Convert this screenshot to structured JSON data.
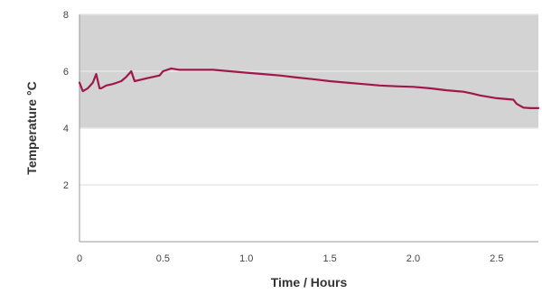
{
  "chart_data": {
    "type": "line",
    "title": "",
    "xlabel": "Time / Hours",
    "ylabel": "Temperature °C",
    "xlim": [
      0,
      2.75
    ],
    "ylim": [
      0,
      8
    ],
    "x_ticks": [
      0,
      0.5,
      1.0,
      1.5,
      2.0,
      2.5
    ],
    "x_tick_labels": [
      "0",
      "0.5",
      "1.0",
      "1.5",
      "2.0",
      "2.5"
    ],
    "y_ticks": [
      2,
      4,
      6,
      8
    ],
    "y_tick_labels": [
      "2",
      "4",
      "6",
      "8"
    ],
    "grid": "horizontal",
    "shaded_band": {
      "y_from": 4,
      "y_to": 8,
      "color": "#d3d3d3"
    },
    "series": [
      {
        "color": "#a0174a",
        "x": [
          0,
          0.02,
          0.05,
          0.08,
          0.1,
          0.12,
          0.13,
          0.16,
          0.2,
          0.25,
          0.28,
          0.31,
          0.33,
          0.4,
          0.48,
          0.5,
          0.55,
          0.6,
          0.7,
          0.8,
          0.9,
          1.0,
          1.1,
          1.2,
          1.3,
          1.4,
          1.5,
          1.6,
          1.7,
          1.8,
          1.9,
          2.0,
          2.1,
          2.2,
          2.3,
          2.35,
          2.4,
          2.5,
          2.6,
          2.62,
          2.66,
          2.7,
          2.75
        ],
        "values": [
          5.6,
          5.3,
          5.4,
          5.6,
          5.9,
          5.4,
          5.4,
          5.5,
          5.55,
          5.65,
          5.8,
          6.0,
          5.65,
          5.75,
          5.85,
          6.0,
          6.1,
          6.05,
          6.05,
          6.05,
          6.0,
          5.95,
          5.9,
          5.85,
          5.78,
          5.72,
          5.65,
          5.6,
          5.55,
          5.5,
          5.47,
          5.45,
          5.4,
          5.33,
          5.28,
          5.22,
          5.15,
          5.05,
          5.0,
          4.85,
          4.72,
          4.7,
          4.7
        ]
      }
    ]
  }
}
